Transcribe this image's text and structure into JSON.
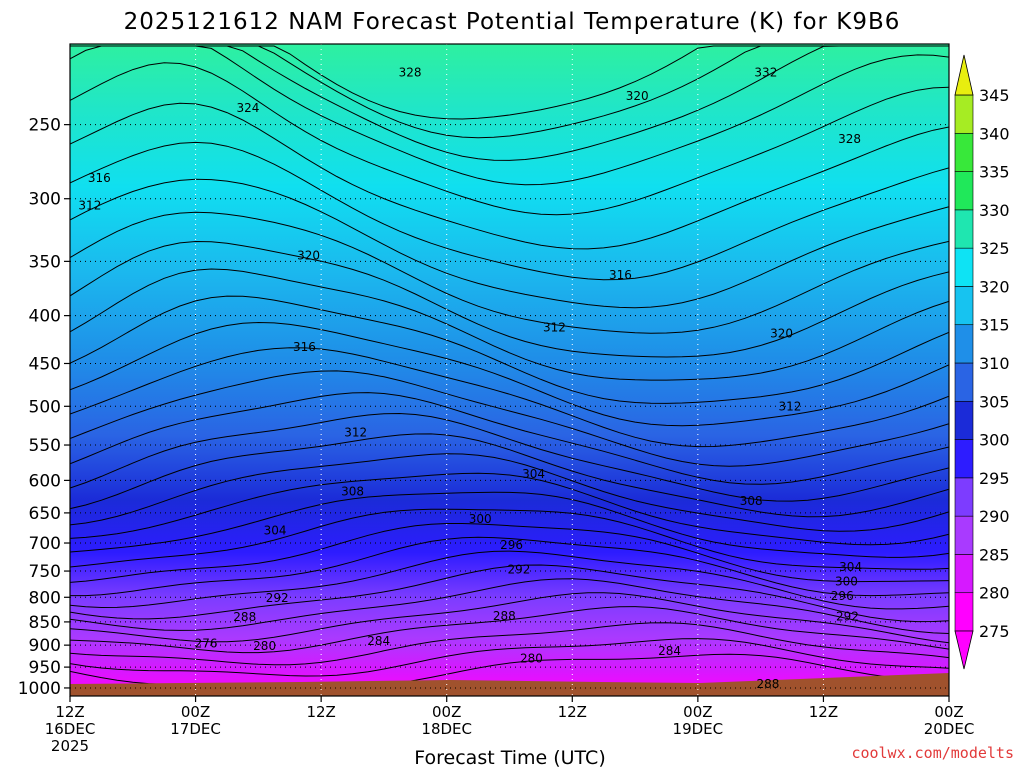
{
  "title": "2025121612 NAM Forecast Potential Temperature (K) for K9B6",
  "xlabel": "Forecast Time (UTC)",
  "credit": "coolwx.com/modelts",
  "chart_data": {
    "type": "contour",
    "variable": "Potential Temperature (K)",
    "model": "NAM",
    "run": "2025121612",
    "station": "K9B6",
    "x_ticks": [
      {
        "line1": "12Z",
        "line2": "16DEC",
        "line3": "2025",
        "hours": 0
      },
      {
        "line1": "00Z",
        "line2": "17DEC",
        "line3": "",
        "hours": 12
      },
      {
        "line1": "12Z",
        "line2": "",
        "line3": "",
        "hours": 24
      },
      {
        "line1": "00Z",
        "line2": "18DEC",
        "line3": "",
        "hours": 36
      },
      {
        "line1": "12Z",
        "line2": "",
        "line3": "",
        "hours": 48
      },
      {
        "line1": "00Z",
        "line2": "19DEC",
        "line3": "",
        "hours": 60
      },
      {
        "line1": "12Z",
        "line2": "",
        "line3": "",
        "hours": 72
      },
      {
        "line1": "00Z",
        "line2": "20DEC",
        "line3": "",
        "hours": 84
      }
    ],
    "xlim_hours": [
      0,
      84
    ],
    "y_axis": "pressure (hPa)",
    "y_scale": "log",
    "ylim": [
      1020,
      205
    ],
    "y_ticks": [
      250,
      300,
      350,
      400,
      450,
      500,
      550,
      600,
      650,
      700,
      750,
      800,
      850,
      900,
      950,
      1000
    ],
    "grid": true,
    "colorbar_levels": [
      275,
      280,
      285,
      290,
      295,
      300,
      305,
      310,
      315,
      320,
      325,
      330,
      335,
      340,
      345
    ],
    "colorbar_extend": "both",
    "contour_labels": [
      {
        "text": "328",
        "hours": 32.5,
        "p": 220
      },
      {
        "text": "332",
        "hours": 66.5,
        "p": 220
      },
      {
        "text": "324",
        "hours": 17,
        "p": 240
      },
      {
        "text": "320",
        "hours": 54.2,
        "p": 233
      },
      {
        "text": "328",
        "hours": 74.5,
        "p": 259
      },
      {
        "text": "316",
        "hours": 2.8,
        "p": 285
      },
      {
        "text": "312",
        "hours": 1.9,
        "p": 305
      },
      {
        "text": "320",
        "hours": 22.8,
        "p": 345
      },
      {
        "text": "316",
        "hours": 52.6,
        "p": 362
      },
      {
        "text": "312",
        "hours": 46.3,
        "p": 412
      },
      {
        "text": "316",
        "hours": 22.4,
        "p": 432
      },
      {
        "text": "320",
        "hours": 68,
        "p": 418
      },
      {
        "text": "312",
        "hours": 68.8,
        "p": 500
      },
      {
        "text": "312",
        "hours": 27.3,
        "p": 533
      },
      {
        "text": "304",
        "hours": 44.3,
        "p": 591
      },
      {
        "text": "308",
        "hours": 27,
        "p": 617
      },
      {
        "text": "308",
        "hours": 65.1,
        "p": 631
      },
      {
        "text": "300",
        "hours": 39.2,
        "p": 660
      },
      {
        "text": "304",
        "hours": 19.6,
        "p": 679
      },
      {
        "text": "296",
        "hours": 42.2,
        "p": 703
      },
      {
        "text": "292",
        "hours": 42.9,
        "p": 747
      },
      {
        "text": "304",
        "hours": 74.6,
        "p": 743
      },
      {
        "text": "300",
        "hours": 74.2,
        "p": 770
      },
      {
        "text": "296",
        "hours": 73.8,
        "p": 797
      },
      {
        "text": "292",
        "hours": 19.8,
        "p": 801
      },
      {
        "text": "288",
        "hours": 16.7,
        "p": 840
      },
      {
        "text": "288",
        "hours": 41.5,
        "p": 838
      },
      {
        "text": "292",
        "hours": 74.3,
        "p": 839
      },
      {
        "text": "276",
        "hours": 13,
        "p": 896
      },
      {
        "text": "280",
        "hours": 18.6,
        "p": 902
      },
      {
        "text": "284",
        "hours": 29.5,
        "p": 891
      },
      {
        "text": "280",
        "hours": 44.1,
        "p": 930
      },
      {
        "text": "284",
        "hours": 57.3,
        "p": 913
      },
      {
        "text": "288",
        "hours": 66.7,
        "p": 990
      }
    ]
  }
}
